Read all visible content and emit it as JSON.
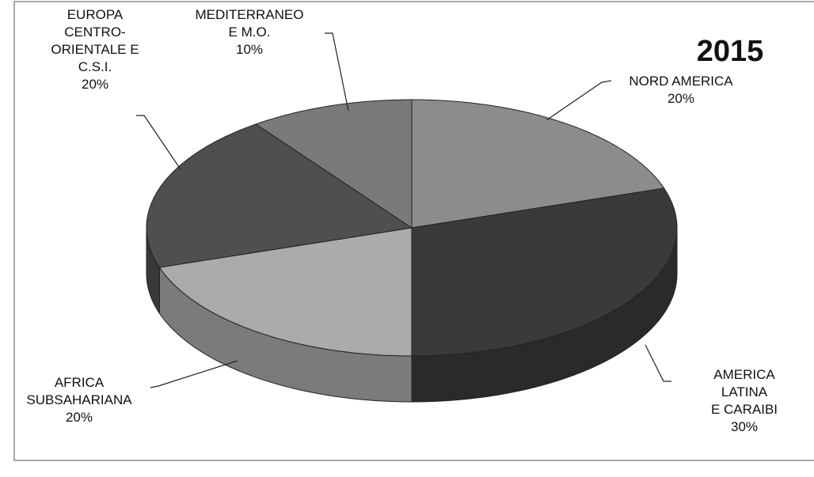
{
  "chart_data": {
    "type": "pie",
    "title": "2015",
    "categories": [
      "NORD AMERICA",
      "AMERICA LATINA\nE CARAIBI",
      "AFRICA\nSUBSAHARIANA",
      "EUROPA\nCENTRO-\nORIENTALE E\nC.S.I.",
      "MEDITERRANEO\nE M.O."
    ],
    "values": [
      20,
      30,
      20,
      20,
      10
    ],
    "value_labels": [
      "20%",
      "30%",
      "20%",
      "20%",
      "10%"
    ],
    "colors": [
      "#8c8c8c",
      "#3a3a3a",
      "#ababab",
      "#4f4f4f",
      "#7a7a7a"
    ]
  }
}
